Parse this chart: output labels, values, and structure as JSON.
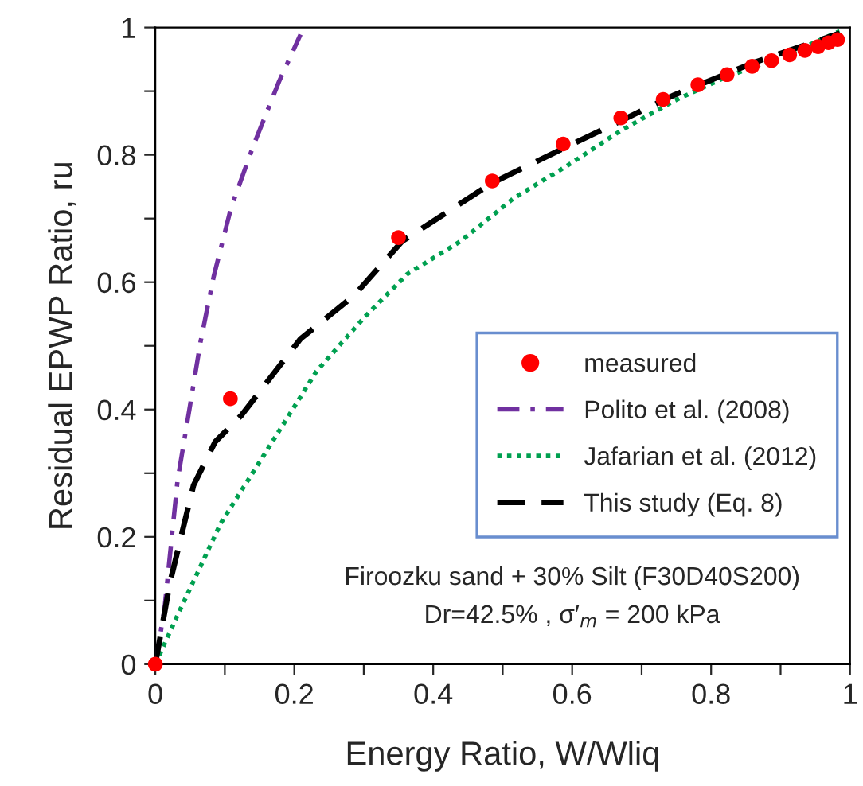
{
  "chart_data": {
    "type": "line",
    "xlabel": "Energy Ratio, W/Wliq",
    "ylabel": "Residual EPWP Ratio, ru",
    "xlim": [
      0,
      1
    ],
    "ylim": [
      0,
      1
    ],
    "xticks": [
      0,
      {
        "value": 0.1,
        "label": null
      },
      0.2,
      {
        "value": 0.3,
        "label": null
      },
      0.4,
      {
        "value": 0.5,
        "label": null
      },
      0.6,
      {
        "value": 0.7,
        "label": null
      },
      0.8,
      {
        "value": 0.9,
        "label": null
      },
      1
    ],
    "yticks": [
      0,
      {
        "value": 0.1,
        "label": null
      },
      0.2,
      {
        "value": 0.3,
        "label": null
      },
      0.4,
      {
        "value": 0.5,
        "label": null
      },
      0.6,
      {
        "value": 0.7,
        "label": null
      },
      0.8,
      {
        "value": 0.9,
        "label": null
      },
      1
    ],
    "grid": false,
    "legend": "right",
    "series": [
      {
        "name": "measured",
        "type": "scatter",
        "marker": "circle",
        "color": "#ff0000",
        "x": [
          0,
          0.108,
          0.35,
          0.485,
          0.587,
          0.67,
          0.731,
          0.781,
          0.823,
          0.859,
          0.887,
          0.913,
          0.935,
          0.954,
          0.969,
          0.982
        ],
        "values": [
          0,
          0.417,
          0.67,
          0.759,
          0.817,
          0.858,
          0.887,
          0.91,
          0.926,
          0.939,
          0.948,
          0.957,
          0.964,
          0.97,
          0.976,
          0.981
        ]
      },
      {
        "name": "Polito et al. (2008)",
        "line_style": "dashdot",
        "color": "#7030a0",
        "x": [
          0,
          0.013,
          0.032,
          0.049,
          0.065,
          0.084,
          0.109,
          0.141,
          0.178,
          0.209
        ],
        "values": [
          0,
          0.085,
          0.289,
          0.4,
          0.506,
          0.609,
          0.717,
          0.814,
          0.915,
          0.989
        ]
      },
      {
        "name": "Jafarian et al. (2012)",
        "line_style": "dotted",
        "color": "#00a050",
        "x": [
          0,
          0.032,
          0.094,
          0.163,
          0.232,
          0.301,
          0.363,
          0.439,
          0.516,
          0.593,
          0.67,
          0.747,
          0.823,
          0.9,
          0.985
        ],
        "values": [
          0,
          0.077,
          0.221,
          0.34,
          0.46,
          0.545,
          0.613,
          0.664,
          0.732,
          0.783,
          0.838,
          0.885,
          0.923,
          0.953,
          0.994
        ]
      },
      {
        "name": "This study (Eq. 8)",
        "line_style": "dashed",
        "color": "#000000",
        "x": [
          0,
          0.021,
          0.055,
          0.086,
          0.124,
          0.209,
          0.286,
          0.355,
          0.485,
          0.593,
          0.747,
          0.862,
          0.985
        ],
        "values": [
          0,
          0.128,
          0.281,
          0.349,
          0.391,
          0.511,
          0.579,
          0.664,
          0.756,
          0.813,
          0.894,
          0.945,
          0.991
        ]
      }
    ],
    "annotations": [
      "Firoozku sand + 30% Silt (F30D40S200)",
      "Dr=42.5% , σ′$_{m}$ = 200 kPa"
    ]
  }
}
